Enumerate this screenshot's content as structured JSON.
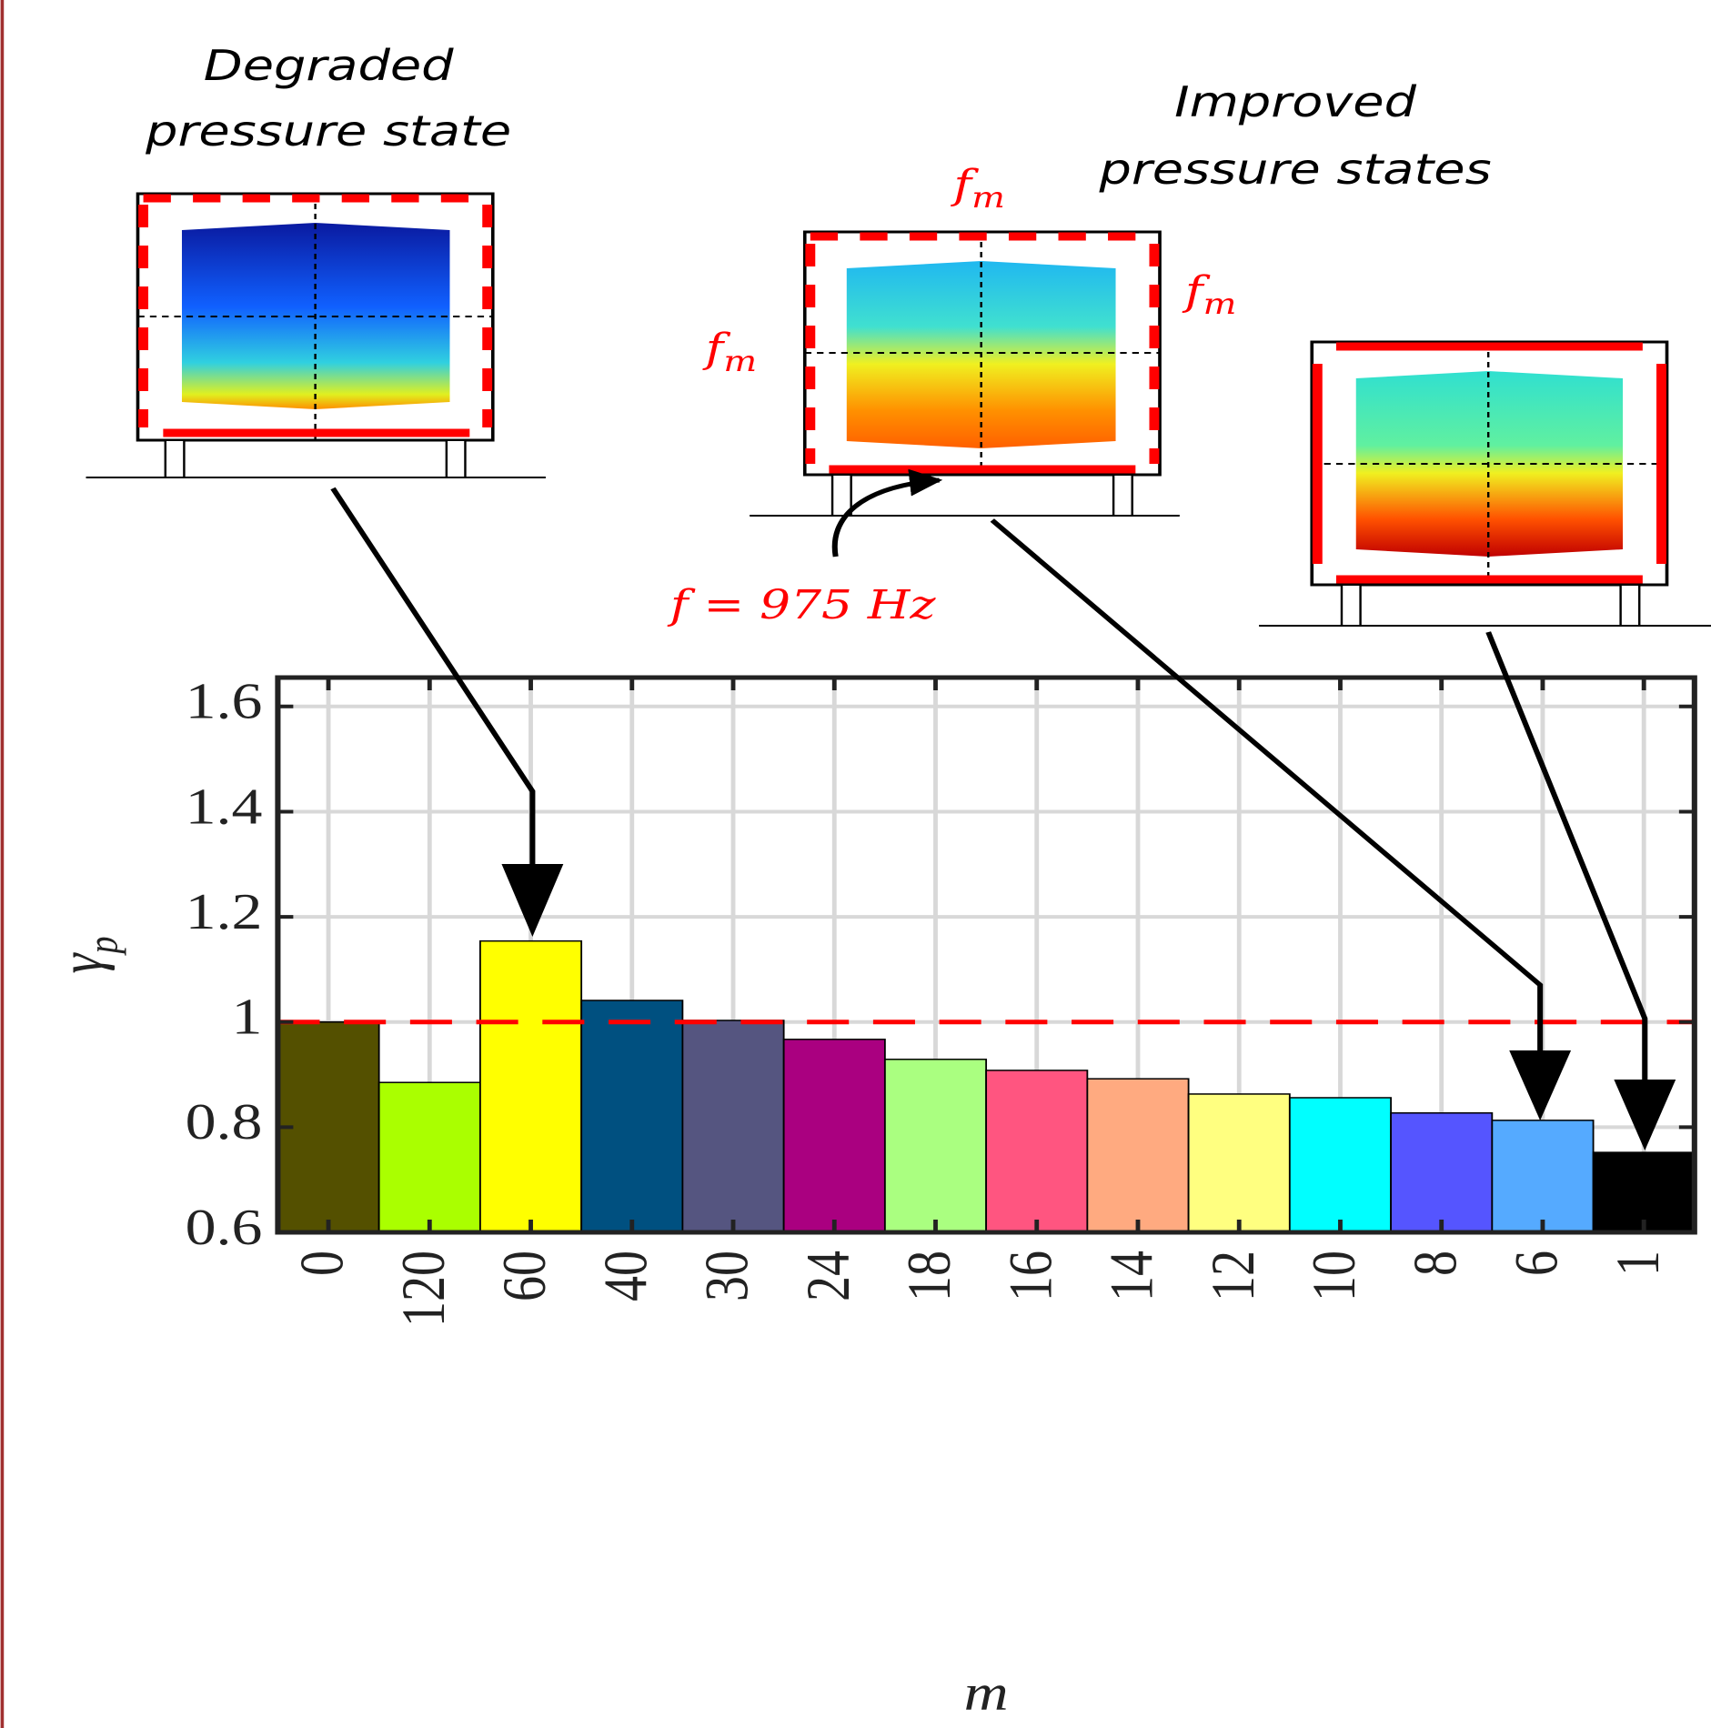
{
  "chart_data": {
    "type": "bar",
    "categories": [
      "0",
      "120",
      "60",
      "40",
      "30",
      "24",
      "18",
      "16",
      "14",
      "12",
      "10",
      "8",
      "6",
      "1"
    ],
    "values": [
      1.0,
      0.885,
      1.154,
      1.041,
      1.003,
      0.967,
      0.929,
      0.908,
      0.892,
      0.863,
      0.856,
      0.827,
      0.813,
      0.752
    ],
    "colors": [
      "#545000",
      "#aaff00",
      "#ffff00",
      "#005080",
      "#555580",
      "#aa0080",
      "#aaff80",
      "#ff5580",
      "#ffaa80",
      "#ffff80",
      "#00ffff",
      "#5555ff",
      "#55aaff",
      "#000000"
    ],
    "ylim": [
      0.6,
      1.655
    ],
    "yticks": [
      0.6,
      0.8,
      1,
      1.2,
      1.4,
      1.6
    ],
    "grid": true,
    "reference_line": {
      "value": 1,
      "color": "#ff0000"
    },
    "xlabel": "m",
    "ylabel": {
      "symbol": "γ",
      "sub": "p"
    }
  },
  "annotations": {
    "degraded": [
      "Degraded",
      "pressure state"
    ],
    "improved": [
      "Improved",
      "pressure states"
    ],
    "fm": {
      "symbol": "f",
      "sub": "m"
    },
    "frequency": "f = 975 Hz"
  }
}
